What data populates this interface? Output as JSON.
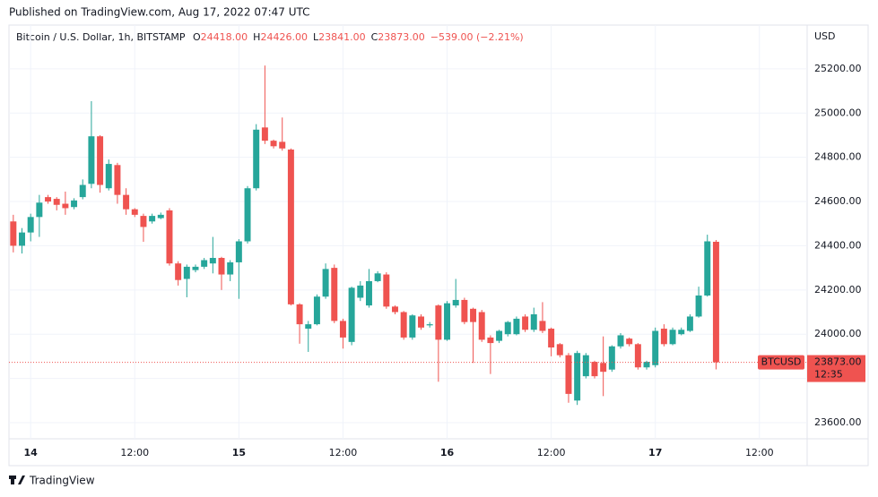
{
  "header": {
    "published": "Published on TradingView.com, Aug 17, 2022 07:47 UTC",
    "symbol": "Bitcoin / U.S. Dollar, 1h, BITSTAMP",
    "ohlc": [
      {
        "label": "O",
        "value": "24418.00"
      },
      {
        "label": "H",
        "value": "24426.00"
      },
      {
        "label": "L",
        "value": "23841.00"
      },
      {
        "label": "C",
        "value": "23873.00"
      }
    ],
    "change": "−539.00 (−2.21%)"
  },
  "chart_data": {
    "type": "candlestick",
    "categories": [
      null,
      null,
      "14",
      null,
      null,
      null,
      null,
      null,
      null,
      null,
      null,
      null,
      null,
      null,
      "12:00",
      null,
      null,
      null,
      null,
      null,
      null,
      null,
      null,
      null,
      null,
      null,
      "15",
      null,
      null,
      null,
      null,
      null,
      null,
      null,
      null,
      null,
      null,
      null,
      "12:00",
      null,
      null,
      null,
      null,
      null,
      null,
      null,
      null,
      null,
      null,
      null,
      "16",
      null,
      null,
      null,
      null,
      null,
      null,
      null,
      null,
      null,
      null,
      null,
      "12:00",
      null,
      null,
      null,
      null,
      null,
      null,
      null,
      null,
      null,
      null,
      null,
      "17",
      null,
      null,
      null,
      null,
      null,
      null,
      null,
      null,
      null,
      null,
      null,
      "12:00",
      null,
      null,
      null,
      null,
      null
    ],
    "open": [
      24510,
      24400,
      24460,
      24530,
      24620,
      24612,
      24590,
      24575,
      24620,
      24680,
      24895,
      24660,
      24765,
      24630,
      24565,
      24535,
      24510,
      24525,
      24560,
      24320,
      24250,
      24290,
      24305,
      24320,
      24345,
      24270,
      24325,
      24420,
      24660,
      24935,
      24875,
      24870,
      24835,
      24135,
      24025,
      24045,
      24170,
      24300,
      24060,
      23965,
      24165,
      24130,
      24240,
      24270,
      24125,
      24100,
      23985,
      24080,
      24040,
      24130,
      23975,
      24130,
      24155,
      24115,
      24100,
      23985,
      23970,
      24000,
      24000,
      24080,
      24020,
      24060,
      24025,
      23955,
      23905,
      23700,
      23810,
      23875,
      23870,
      23840,
      23945,
      23980,
      23955,
      23850,
      23860,
      24025,
      23955,
      24000,
      24015,
      24080,
      24175,
      24418,
      null,
      null,
      null,
      null,
      null,
      null,
      null,
      null,
      null,
      null
    ],
    "high": [
      24540,
      24480,
      24545,
      24630,
      24630,
      24620,
      24645,
      24615,
      24700,
      25054,
      24900,
      24790,
      24775,
      24660,
      24570,
      24545,
      24545,
      24550,
      24570,
      24330,
      24315,
      24315,
      24345,
      24440,
      24350,
      24335,
      24430,
      24670,
      24950,
      25215,
      24880,
      24980,
      24840,
      24140,
      24060,
      24180,
      24320,
      24315,
      24070,
      24215,
      24240,
      24295,
      24285,
      24280,
      24130,
      24105,
      24090,
      24090,
      24055,
      24135,
      24150,
      24250,
      24165,
      24120,
      24110,
      23995,
      24020,
      24060,
      24080,
      24090,
      24120,
      24145,
      24030,
      23960,
      23915,
      23925,
      23915,
      23880,
      23990,
      23950,
      24005,
      23985,
      23960,
      23880,
      24030,
      24045,
      24030,
      24030,
      24090,
      24215,
      24450,
      24426,
      null,
      null,
      null,
      null,
      null,
      null,
      null,
      null,
      null,
      null
    ],
    "low": [
      24370,
      24365,
      24420,
      24440,
      24590,
      24560,
      24540,
      24565,
      24610,
      24660,
      24640,
      24650,
      24590,
      24540,
      24530,
      24418,
      24500,
      24520,
      24310,
      24220,
      24167,
      24280,
      24295,
      24275,
      24200,
      24240,
      24160,
      24410,
      24650,
      24860,
      24840,
      24830,
      24130,
      23957,
      23920,
      24040,
      24160,
      24050,
      23935,
      23950,
      24150,
      24120,
      24235,
      24115,
      24090,
      23975,
      23975,
      24020,
      24030,
      23785,
      23970,
      24120,
      24045,
      23870,
      23965,
      23820,
      23960,
      23990,
      23995,
      24010,
      24010,
      24005,
      23900,
      23895,
      23690,
      23680,
      23800,
      23800,
      23720,
      23830,
      23935,
      23945,
      23840,
      23840,
      23850,
      23945,
      23950,
      23995,
      24010,
      24075,
      24170,
      23841,
      null,
      null,
      null,
      null,
      null,
      null,
      null,
      null,
      null,
      null
    ],
    "close": [
      24400,
      24460,
      24530,
      24595,
      24600,
      24585,
      24570,
      24605,
      24675,
      24895,
      24675,
      24770,
      24630,
      24565,
      24540,
      24485,
      24535,
      24540,
      24320,
      24245,
      24305,
      24305,
      24335,
      24345,
      24270,
      24325,
      24420,
      24660,
      24925,
      24875,
      24850,
      24840,
      24135,
      24045,
      24045,
      24170,
      24295,
      24060,
      23985,
      24210,
      24220,
      24240,
      24275,
      24125,
      24100,
      23985,
      24085,
      24030,
      24045,
      23975,
      24140,
      24155,
      24055,
      24055,
      23975,
      23960,
      24015,
      24055,
      24070,
      24020,
      24090,
      24015,
      23940,
      23905,
      23730,
      23915,
      23905,
      23810,
      23830,
      23945,
      23995,
      23955,
      23850,
      23875,
      24015,
      23955,
      24020,
      24020,
      24080,
      24175,
      24420,
      23873,
      null,
      null,
      null,
      null,
      null,
      null,
      null,
      null,
      null,
      null
    ],
    "up_color": "#26a69a",
    "down_color": "#ef5350",
    "ylim": [
      23527,
      25398
    ],
    "yticks": [
      {
        "value": 23600,
        "label": "23600.00"
      },
      {
        "value": 23800,
        "label": "23800.00"
      },
      {
        "value": 24000,
        "label": "24000.00"
      },
      {
        "value": 24200,
        "label": "24200.00"
      },
      {
        "value": 24400,
        "label": "24400.00"
      },
      {
        "value": 24600,
        "label": "24600.00"
      },
      {
        "value": 24800,
        "label": "24800.00"
      },
      {
        "value": 25000,
        "label": "25000.00"
      },
      {
        "value": 25200,
        "label": "25200.00"
      }
    ],
    "grid": true,
    "currency": "USD",
    "last_price": {
      "symbol": "BTCUSD",
      "value": 23873,
      "label": "23873.00",
      "countdown": "12:35"
    }
  },
  "footer": {
    "brand": "TradingView"
  }
}
